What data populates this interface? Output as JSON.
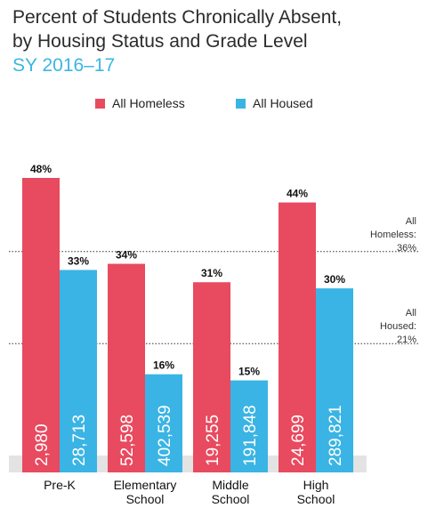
{
  "header": {
    "title_line1": "Percent of Students Chronically Absent,",
    "title_line2": "by Housing Status and Grade Level",
    "subtitle": "SY 2016–17"
  },
  "colors": {
    "homeless": "#e84a5f",
    "housed": "#3ab4e4",
    "base": "#e3e3e3"
  },
  "chart_data": {
    "type": "bar",
    "title": "Percent of Students Chronically Absent, by Housing Status and Grade Level",
    "subtitle": "SY 2016–17",
    "categories": [
      [
        "Pre-K"
      ],
      [
        "Elementary",
        "School"
      ],
      [
        "Middle",
        "School"
      ],
      [
        "High",
        "School"
      ]
    ],
    "series": [
      {
        "name": "All Homeless",
        "values": [
          48,
          34,
          31,
          44
        ],
        "value_labels": [
          "48%",
          "34%",
          "31%",
          "44%"
        ],
        "counts": [
          "2,980",
          "52,598",
          "19,255",
          "24,699"
        ]
      },
      {
        "name": "All Housed",
        "values": [
          33,
          16,
          15,
          30
        ],
        "value_labels": [
          "33%",
          "16%",
          "15%",
          "30%"
        ],
        "counts": [
          "28,713",
          "402,539",
          "191,848",
          "289,821"
        ]
      }
    ],
    "reference_lines": [
      {
        "label_lines": [
          "All",
          "Homeless:",
          "36%"
        ],
        "value": 36
      },
      {
        "label_lines": [
          "All",
          "Housed:",
          "21%"
        ],
        "value": 21
      }
    ],
    "ylim": [
      0,
      48
    ],
    "legend_position": "top",
    "grid": false
  }
}
